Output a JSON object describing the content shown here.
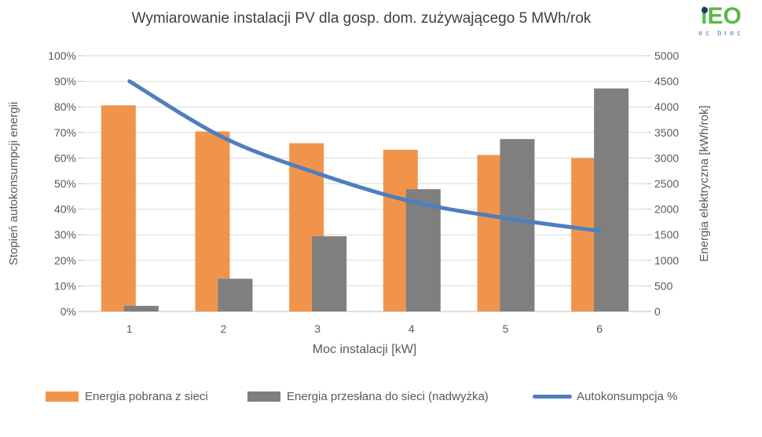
{
  "title": "Wymiarowanie instalacji PV dla gosp. dom. zużywającego 5 MWh/rok",
  "logo": {
    "word": "iEO",
    "subtext": "ec brec",
    "green": "#5bb847",
    "blue": "#4a7ebb",
    "dot_navy": "#1f3864"
  },
  "chart_data": {
    "type": "bar+line-combo",
    "categories": [
      "1",
      "2",
      "3",
      "4",
      "5",
      "6"
    ],
    "xlabel": "Moc instalacji [kW]",
    "left_axis": {
      "label": "Stopień autokonsumpcji energii",
      "min": 0,
      "max": 100,
      "step": 10,
      "ticks": [
        "0%",
        "10%",
        "20%",
        "30%",
        "40%",
        "50%",
        "60%",
        "70%",
        "80%",
        "90%",
        "100%"
      ]
    },
    "right_axis": {
      "label": "Energia elektryczna [kWh/rok]",
      "min": 0,
      "max": 5000,
      "step": 500,
      "ticks": [
        "0",
        "500",
        "1000",
        "1500",
        "2000",
        "2500",
        "3000",
        "3500",
        "4000",
        "4500",
        "5000"
      ]
    },
    "grid": true,
    "legend_position": "bottom",
    "series": [
      {
        "name": "Energia pobrana z sieci",
        "type": "bar",
        "axis": "right",
        "color": "#F0944C",
        "values": [
          4030,
          3520,
          3290,
          3160,
          3060,
          3000
        ]
      },
      {
        "name": "Energia przesłana do sieci (nadwyżka)",
        "type": "bar",
        "axis": "right",
        "color": "#7F7F7F",
        "values": [
          110,
          640,
          1470,
          2390,
          3370,
          4360
        ]
      },
      {
        "name": "Autokonsumpcja %",
        "type": "line",
        "axis": "left",
        "color": "#4E7EBE",
        "values": [
          90,
          68,
          54,
          43,
          36.5,
          31.5
        ]
      }
    ],
    "colors": {
      "gridline": "#D9D9D9",
      "axis_line": "#BFBFBF",
      "tick_text": "#595959",
      "title_text": "#404040"
    }
  }
}
